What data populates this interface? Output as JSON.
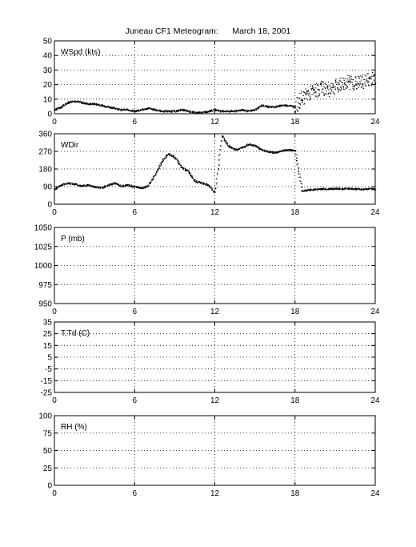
{
  "title": "Juneau CF1 Meteogram:      March 18, 2001",
  "chart_data": [
    {
      "type": "scatter",
      "panel_label": "WSpd (kts)",
      "xlim": [
        0,
        24
      ],
      "xticks": [
        "0",
        "6",
        "12",
        "18",
        "24"
      ],
      "ylim": [
        0,
        50
      ],
      "yticks": [
        "0",
        "10",
        "20",
        "30",
        "40",
        "50"
      ],
      "grid": true,
      "series": [
        {
          "x": [
            0,
            0.5,
            1,
            1.5,
            2,
            2.5,
            3,
            3.5,
            4,
            4.5,
            5,
            5.5,
            6,
            6.5,
            7,
            7.5,
            8,
            8.5,
            9,
            9.5,
            10,
            10.5,
            11,
            11.5,
            12,
            12.5,
            13,
            13.5,
            14,
            14.5,
            15,
            15.5,
            16,
            16.5,
            17,
            17.5,
            18,
            18.5,
            19,
            19.5,
            20,
            20.5,
            21,
            21.5,
            22,
            22.5,
            23,
            23.5,
            24
          ],
          "values": [
            3,
            5,
            8,
            9,
            8,
            7,
            7,
            6,
            5,
            4,
            3,
            3,
            2,
            3,
            4,
            3,
            2,
            2,
            2,
            3,
            2,
            1,
            1,
            2,
            3,
            2,
            2,
            2,
            3,
            2,
            3,
            6,
            5,
            5,
            6,
            6,
            5,
            11,
            14,
            16,
            18,
            17,
            19,
            21,
            22,
            21,
            22,
            24,
            25
          ]
        }
      ]
    },
    {
      "type": "scatter",
      "panel_label": "WDir",
      "xlim": [
        0,
        24
      ],
      "xticks": [
        "0",
        "6",
        "12",
        "18",
        "24"
      ],
      "ylim": [
        0,
        360
      ],
      "yticks": [
        "0",
        "90",
        "180",
        "270",
        "360"
      ],
      "grid": true,
      "series": [
        {
          "x": [
            0,
            0.5,
            1,
            1.5,
            2,
            2.5,
            3,
            3.5,
            4,
            4.5,
            5,
            5.5,
            6,
            6.5,
            7,
            7.5,
            8,
            8.5,
            9,
            9.5,
            10,
            10.5,
            11,
            11.5,
            12,
            12.5,
            13,
            13.5,
            14,
            14.5,
            15,
            15.5,
            16,
            16.5,
            17,
            17.5,
            18,
            18.5,
            19,
            19.5,
            20,
            20.5,
            21,
            21.5,
            22,
            22.5,
            23,
            23.5,
            24
          ],
          "values": [
            80,
            100,
            110,
            105,
            95,
            100,
            90,
            85,
            100,
            110,
            95,
            100,
            90,
            85,
            95,
            150,
            220,
            260,
            240,
            190,
            170,
            120,
            110,
            100,
            60,
            350,
            300,
            280,
            290,
            310,
            300,
            280,
            270,
            265,
            275,
            280,
            275,
            70,
            75,
            78,
            80,
            80,
            82,
            80,
            82,
            80,
            78,
            80,
            80
          ]
        }
      ]
    },
    {
      "type": "scatter",
      "panel_label": "P (mb)",
      "xlim": [
        0,
        24
      ],
      "xticks": [
        "0",
        "6",
        "12",
        "18",
        "24"
      ],
      "ylim": [
        950,
        1050
      ],
      "yticks": [
        "950",
        "975",
        "1000",
        "1025",
        "1050"
      ],
      "grid": true,
      "series": []
    },
    {
      "type": "scatter",
      "panel_label": "T,Td (C)",
      "xlim": [
        0,
        24
      ],
      "xticks": [
        "0",
        "6",
        "12",
        "18",
        "24"
      ],
      "ylim": [
        -25,
        35
      ],
      "yticks": [
        "-25",
        "-15",
        "-5",
        "5",
        "15",
        "25",
        "35"
      ],
      "grid": true,
      "series": []
    },
    {
      "type": "scatter",
      "panel_label": "RH (%)",
      "xlim": [
        0,
        24
      ],
      "xticks": [
        "0",
        "6",
        "12",
        "18",
        "24"
      ],
      "ylim": [
        0,
        100
      ],
      "yticks": [
        "0",
        "25",
        "50",
        "75",
        "100"
      ],
      "grid": true,
      "series": []
    }
  ]
}
